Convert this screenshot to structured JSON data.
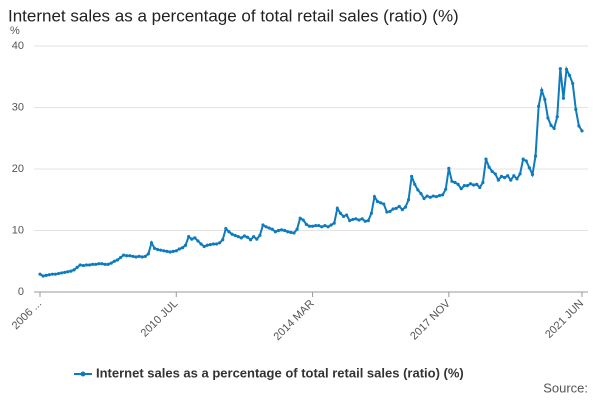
{
  "chart_data": {
    "type": "line",
    "title": "Internet sales as a percentage of total retail sales (ratio) (%)",
    "y_unit": "%",
    "source": "Source:",
    "categories": [
      "2006 ...",
      null,
      null,
      null,
      null,
      null,
      null,
      null,
      null,
      null,
      null,
      null,
      null,
      null,
      null,
      null,
      null,
      null,
      null,
      null,
      null,
      null,
      null,
      null,
      null,
      null,
      null,
      null,
      null,
      null,
      null,
      null,
      null,
      null,
      null,
      null,
      null,
      null,
      null,
      null,
      null,
      null,
      null,
      null,
      "2010 JUL",
      null,
      null,
      null,
      null,
      null,
      null,
      null,
      null,
      null,
      null,
      null,
      null,
      null,
      null,
      null,
      null,
      null,
      null,
      null,
      null,
      null,
      null,
      null,
      null,
      null,
      null,
      null,
      null,
      null,
      null,
      null,
      null,
      null,
      null,
      null,
      null,
      null,
      null,
      null,
      null,
      null,
      null,
      null,
      "2014 MAR",
      null,
      null,
      null,
      null,
      null,
      null,
      null,
      null,
      null,
      null,
      null,
      null,
      null,
      null,
      null,
      null,
      null,
      null,
      null,
      null,
      null,
      null,
      null,
      null,
      null,
      null,
      null,
      null,
      null,
      null,
      null,
      null,
      null,
      null,
      null,
      null,
      null,
      null,
      null,
      null,
      null,
      null,
      null,
      "2017 NOV",
      null,
      null,
      null,
      null,
      null,
      null,
      null,
      null,
      null,
      null,
      null,
      null,
      null,
      null,
      null,
      null,
      null,
      null,
      null,
      null,
      null,
      null,
      null,
      null,
      null,
      null,
      null,
      null,
      null,
      null,
      null,
      null,
      null,
      null,
      null,
      null,
      null,
      null,
      null,
      null,
      null,
      null,
      "2021 JUN"
    ],
    "series": [
      {
        "name": "Internet sales as a percentage of total retail sales (ratio) (%)",
        "color": "#0f7bbd",
        "values": [
          2.9,
          2.6,
          2.7,
          2.8,
          2.9,
          2.9,
          3.0,
          3.1,
          3.2,
          3.3,
          3.4,
          3.6,
          4.0,
          4.4,
          4.3,
          4.4,
          4.4,
          4.5,
          4.5,
          4.6,
          4.6,
          4.5,
          4.5,
          4.7,
          5.0,
          5.2,
          5.6,
          6.0,
          5.9,
          5.9,
          5.8,
          5.7,
          5.8,
          5.7,
          5.8,
          6.2,
          8.0,
          7.1,
          6.9,
          6.8,
          6.7,
          6.6,
          6.5,
          6.6,
          6.7,
          7.0,
          7.2,
          7.6,
          9.0,
          8.6,
          8.8,
          8.3,
          7.8,
          7.4,
          7.6,
          7.7,
          7.8,
          7.8,
          8.0,
          8.5,
          10.3,
          9.8,
          9.4,
          9.2,
          9.0,
          8.8,
          9.1,
          8.9,
          8.5,
          9.0,
          8.6,
          9.2,
          10.9,
          10.6,
          10.4,
          10.2,
          9.8,
          10.0,
          10.1,
          10.0,
          9.8,
          9.7,
          9.6,
          10.2,
          12.0,
          11.7,
          11.0,
          10.7,
          10.7,
          10.8,
          10.8,
          10.6,
          10.8,
          10.6,
          10.9,
          11.2,
          13.6,
          12.8,
          12.3,
          12.5,
          11.6,
          11.8,
          11.9,
          11.7,
          11.9,
          11.5,
          11.6,
          12.8,
          15.5,
          14.7,
          14.5,
          14.3,
          13.0,
          13.1,
          13.5,
          13.6,
          13.9,
          13.4,
          13.8,
          15.0,
          18.8,
          17.5,
          16.6,
          16.0,
          15.2,
          15.6,
          15.4,
          15.6,
          15.5,
          15.7,
          15.8,
          16.7,
          20.1,
          18.0,
          17.8,
          17.5,
          16.8,
          17.3,
          17.3,
          17.6,
          17.4,
          17.5,
          17.0,
          17.8,
          21.6,
          20.3,
          19.6,
          19.2,
          18.2,
          18.8,
          18.6,
          18.9,
          18.2,
          18.9,
          18.4,
          19.2,
          21.6,
          21.3,
          20.2,
          19.1,
          22.1,
          30.2,
          32.8,
          31.3,
          28.3,
          27.1,
          26.6,
          28.5,
          36.3,
          31.5,
          36.2,
          35.2,
          33.9,
          29.7,
          27.0,
          26.2
        ]
      }
    ],
    "ylim": [
      0,
      40
    ],
    "yticks": [
      0,
      10,
      20,
      30,
      40
    ],
    "grid": true
  }
}
